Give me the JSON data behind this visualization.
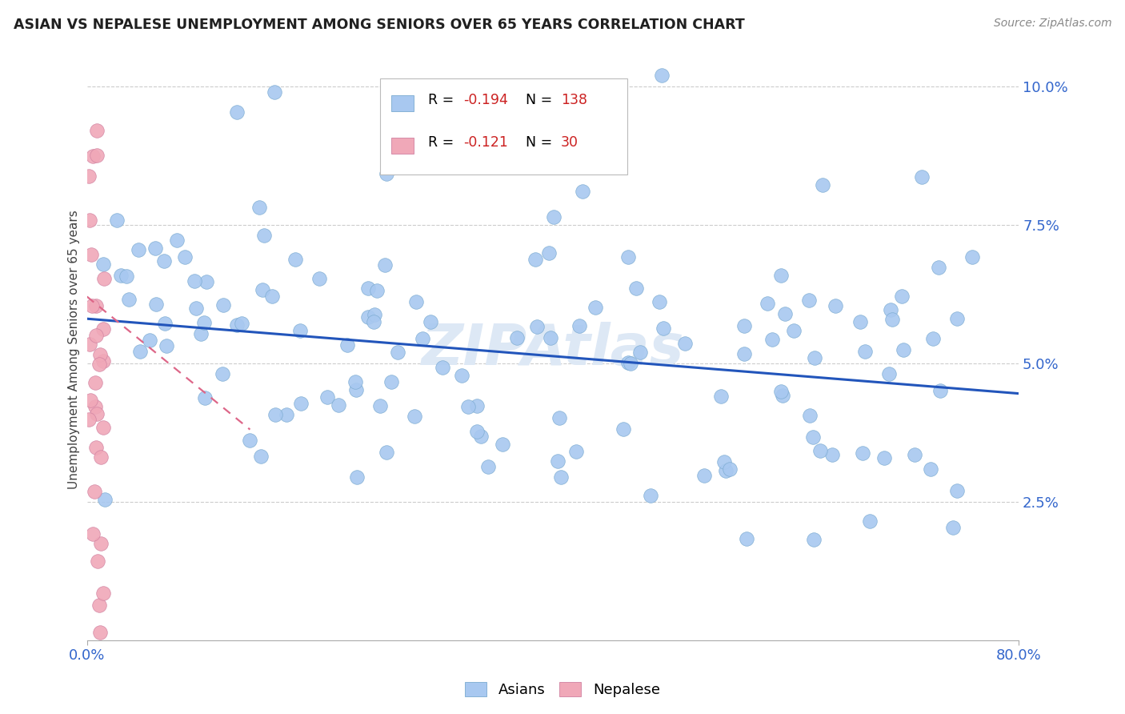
{
  "title": "ASIAN VS NEPALESE UNEMPLOYMENT AMONG SENIORS OVER 65 YEARS CORRELATION CHART",
  "source": "Source: ZipAtlas.com",
  "ylabel_label": "Unemployment Among Seniors over 65 years",
  "xlim": [
    0.0,
    0.8
  ],
  "ylim": [
    0.0,
    0.105
  ],
  "asian_color": "#a8c8f0",
  "asian_edge_color": "#7aaad0",
  "nepalese_color": "#f0a8b8",
  "nepalese_edge_color": "#d080a0",
  "trend_asian_color": "#2255bb",
  "trend_nepalese_color": "#dd6688",
  "background_color": "#ffffff",
  "grid_color": "#cccccc",
  "title_color": "#202020",
  "source_color": "#888888",
  "tick_color": "#3366cc",
  "ylabel_color": "#404040",
  "legend_R_color": "#cc2222",
  "legend_N_color": "#cc2222",
  "ytick_vals": [
    0.025,
    0.05,
    0.075,
    0.1
  ],
  "ytick_labels": [
    "2.5%",
    "5.0%",
    "7.5%",
    "10.0%"
  ],
  "xtick_vals": [
    0.0,
    0.8
  ],
  "xtick_labels": [
    "0.0%",
    "80.0%"
  ],
  "trend_asian_x0": 0.0,
  "trend_asian_x1": 0.8,
  "trend_asian_y0": 0.058,
  "trend_asian_y1": 0.0445,
  "trend_nep_x0": 0.0,
  "trend_nep_x1": 0.14,
  "trend_nep_y0": 0.062,
  "trend_nep_y1": 0.038,
  "legend_R_asian": "-0.194",
  "legend_N_asian": "138",
  "legend_R_nep": "-0.121",
  "legend_N_nep": "30",
  "watermark": "ZIPAtlas",
  "watermark_color": "#dde8f5",
  "scatter_size": 160
}
